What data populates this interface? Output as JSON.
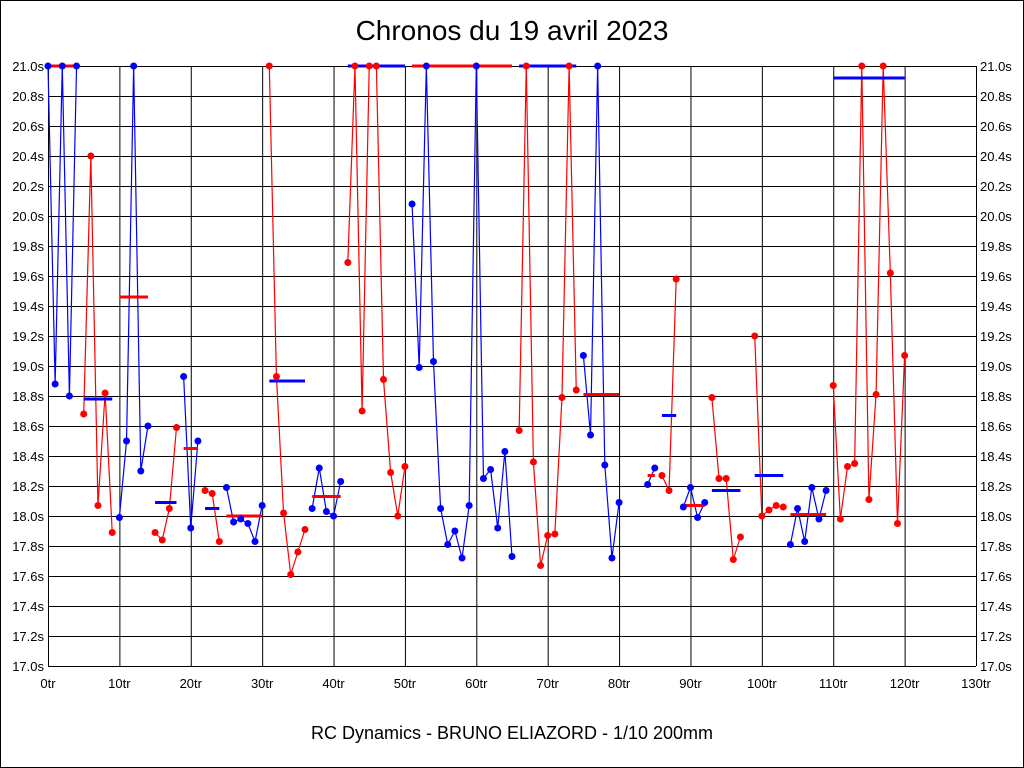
{
  "chart_data": {
    "type": "line",
    "title": "Chronos du 19 avril 2023",
    "xlabel": "RC Dynamics - BRUNO ELIAZORD - 1/10 200mm",
    "ylabel": "",
    "xlim": [
      0,
      130
    ],
    "ylim": [
      17.0,
      21.0
    ],
    "x_ticks": [
      0,
      10,
      20,
      30,
      40,
      50,
      60,
      70,
      80,
      90,
      100,
      110,
      120,
      130
    ],
    "x_tick_labels": [
      "0tr",
      "10tr",
      "20tr",
      "30tr",
      "40tr",
      "50tr",
      "60tr",
      "70tr",
      "80tr",
      "90tr",
      "100tr",
      "110tr",
      "120tr",
      "130tr"
    ],
    "y_ticks": [
      21.0,
      20.8,
      20.6,
      20.4,
      20.2,
      20.0,
      19.8,
      19.6,
      19.4,
      19.2,
      19.0,
      18.8,
      18.6,
      18.4,
      18.2,
      18.0,
      17.8,
      17.6,
      17.4,
      17.2,
      17.0
    ],
    "y_tick_labels": [
      "21.0s",
      "20.8s",
      "20.6s",
      "20.4s",
      "20.2s",
      "20.0s",
      "19.8s",
      "19.6s",
      "19.4s",
      "19.2s",
      "19.0s",
      "18.8s",
      "18.6s",
      "18.4s",
      "18.2s",
      "18.0s",
      "17.8s",
      "17.6s",
      "17.4s",
      "17.2s",
      "17.0s"
    ],
    "grid": true,
    "colors": {
      "blue": "#0000ff",
      "red": "#ff0000"
    },
    "stints": [
      {
        "color": "blue",
        "x": [
          0,
          1,
          2,
          3,
          4
        ],
        "y": [
          21.0,
          18.88,
          21.0,
          18.8,
          21.0
        ],
        "avg": 21.0
      },
      {
        "color": "red",
        "x": [
          5,
          6,
          7,
          8,
          9
        ],
        "y": [
          18.68,
          20.4,
          18.07,
          18.82,
          17.89
        ],
        "avg": 18.78
      },
      {
        "color": "blue",
        "x": [
          10,
          11,
          12,
          13,
          14
        ],
        "y": [
          17.99,
          18.5,
          21.0,
          18.3,
          18.6
        ],
        "avg": 19.46
      },
      {
        "color": "red",
        "x": [
          15,
          16,
          17,
          18
        ],
        "y": [
          17.89,
          17.84,
          18.05,
          18.59
        ],
        "avg": 18.09
      },
      {
        "color": "blue",
        "x": [
          19,
          20,
          21
        ],
        "y": [
          18.93,
          17.92,
          18.5
        ],
        "avg": 18.45
      },
      {
        "color": "red",
        "x": [
          22,
          23,
          24
        ],
        "y": [
          18.17,
          18.15,
          17.83
        ],
        "avg": 18.05
      },
      {
        "color": "blue",
        "x": [
          25,
          26,
          27,
          28,
          29,
          30
        ],
        "y": [
          18.19,
          17.96,
          17.98,
          17.95,
          17.83,
          18.07
        ],
        "avg": 18.0
      },
      {
        "color": "red",
        "x": [
          31,
          32,
          33,
          34,
          35,
          36
        ],
        "y": [
          21.0,
          18.93,
          18.02,
          17.61,
          17.76,
          17.91
        ],
        "avg": 18.9
      },
      {
        "color": "blue",
        "x": [
          37,
          38,
          39,
          40,
          41
        ],
        "y": [
          18.05,
          18.32,
          18.03,
          18.0,
          18.23
        ],
        "avg": 18.13
      },
      {
        "color": "red",
        "x": [
          42,
          43,
          44,
          45,
          46,
          47,
          48,
          49,
          50
        ],
        "y": [
          19.69,
          21.0,
          18.7,
          21.0,
          21.0,
          18.91,
          18.29,
          18.0,
          18.33
        ],
        "avg": 21.0
      },
      {
        "color": "blue",
        "x": [
          51,
          52,
          53,
          54,
          55,
          56,
          57,
          58,
          59,
          60,
          61,
          62,
          63,
          64,
          65
        ],
        "y": [
          20.08,
          18.99,
          21.0,
          19.03,
          18.05,
          17.81,
          17.9,
          17.72,
          18.07,
          21.0,
          18.25,
          18.31,
          17.92,
          18.43,
          17.73
        ],
        "avg": 21.0
      },
      {
        "color": "red",
        "x": [
          66,
          67,
          68,
          69,
          70,
          71,
          72,
          73,
          74
        ],
        "y": [
          18.57,
          21.0,
          18.36,
          17.67,
          17.87,
          17.88,
          18.79,
          21.0,
          18.84
        ],
        "avg": 21.0
      },
      {
        "color": "blue",
        "x": [
          75,
          76,
          77,
          78,
          79,
          80
        ],
        "y": [
          19.07,
          18.54,
          21.0,
          18.34,
          17.72,
          18.09
        ],
        "avg": 18.81
      },
      {
        "color": "blue",
        "x": [
          84,
          85
        ],
        "y": [
          18.21,
          18.32
        ],
        "avg": 18.27
      },
      {
        "color": "red",
        "x": [
          86,
          87,
          88
        ],
        "y": [
          18.27,
          18.17,
          19.58
        ],
        "avg": 18.67
      },
      {
        "color": "blue",
        "x": [
          89,
          90,
          91,
          92
        ],
        "y": [
          18.06,
          18.19,
          17.99,
          18.09
        ],
        "avg": 18.07
      },
      {
        "color": "red",
        "x": [
          93,
          94,
          95,
          96,
          97
        ],
        "y": [
          18.79,
          18.25,
          18.25,
          17.71,
          17.86
        ],
        "avg": 18.17
      },
      {
        "color": "red",
        "x": [
          99,
          100,
          101,
          102,
          103
        ],
        "y": [
          19.2,
          18.0,
          18.04,
          18.07,
          18.06
        ],
        "avg": 18.27
      },
      {
        "color": "blue",
        "x": [
          104,
          105,
          106,
          107,
          108,
          109
        ],
        "y": [
          17.81,
          18.05,
          17.83,
          18.19,
          17.98,
          18.17
        ],
        "avg": 18.01
      },
      {
        "color": "red",
        "x": [
          110,
          111,
          112,
          113,
          114,
          115,
          116,
          117,
          118,
          119,
          120
        ],
        "y": [
          18.87,
          17.98,
          18.33,
          18.35,
          21.0,
          18.11,
          18.81,
          21.0,
          19.62,
          17.95,
          19.07
        ],
        "avg": 20.92
      }
    ]
  }
}
